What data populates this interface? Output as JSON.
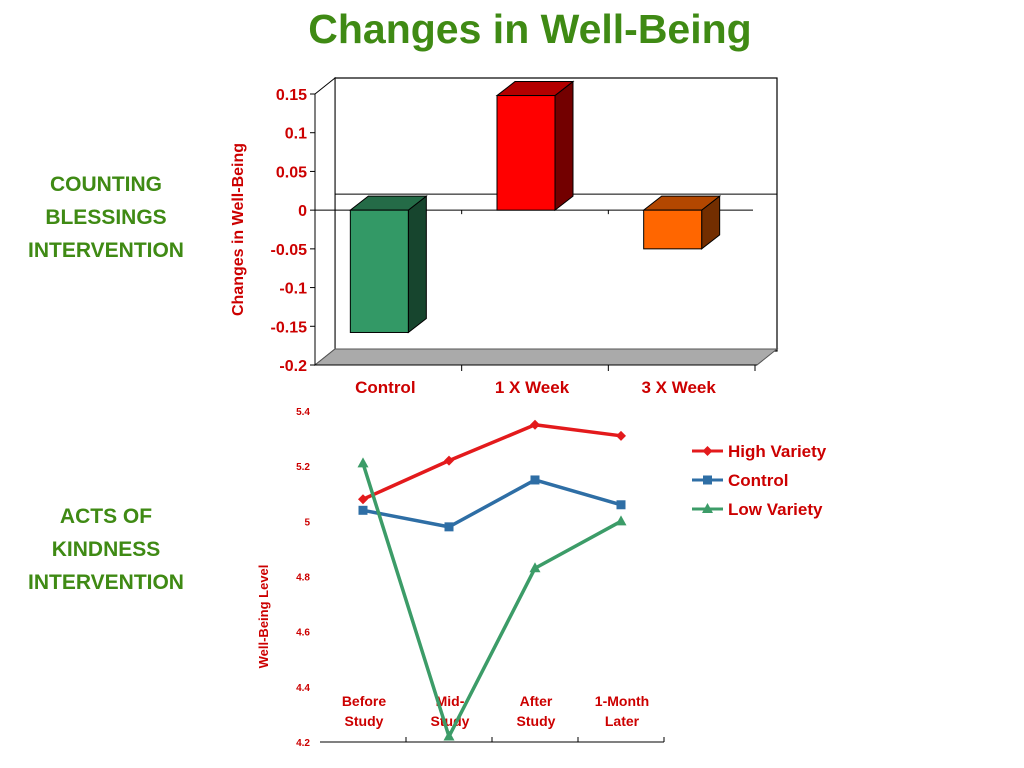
{
  "page": {
    "title": "Changes in Well-Being",
    "section_labels": [
      [
        "COUNTING",
        "BLESSINGS",
        "INTERVENTION"
      ],
      [
        "ACTS OF",
        "KINDNESS",
        "INTERVENTION"
      ]
    ]
  },
  "colors": {
    "title": "#3f8a14",
    "axis_text": "#cc0000",
    "control_bar": "#339966",
    "one_week_bar": "#ff0000",
    "three_week_bar": "#ff6600",
    "high_variety": "#e31a1c",
    "control_line": "#2e6ea5",
    "low_variety": "#3c9c68"
  },
  "chart_data": [
    {
      "type": "bar",
      "style": "3d",
      "title": "",
      "xlabel": "",
      "ylabel": "Changes in Well-Being",
      "categories": [
        "Control",
        "1 X Week",
        "3 X Week"
      ],
      "values": [
        -0.158,
        0.148,
        -0.05
      ],
      "bar_colors": [
        "#339966",
        "#ff0000",
        "#ff6600"
      ],
      "ylim": [
        -0.2,
        0.15
      ],
      "yticks": [
        "0.15",
        "0.1",
        "0.05",
        "0",
        "-0.05",
        "-0.1",
        "-0.15",
        "-0.2"
      ],
      "grid": false
    },
    {
      "type": "line",
      "title": "",
      "xlabel": "",
      "ylabel": "Well-Being Level",
      "categories": [
        "Before Study",
        "Mid-Study",
        "After Study",
        "1-Month Later"
      ],
      "category_lines": [
        [
          "Before",
          "Study"
        ],
        [
          "Mid-",
          "Study"
        ],
        [
          "After",
          "Study"
        ],
        [
          "1-Month",
          "Later"
        ]
      ],
      "ylim": [
        4.2,
        5.4
      ],
      "yticks": [
        "5.4",
        "5.2",
        "5",
        "4.8",
        "4.6",
        "4.4",
        "4.2"
      ],
      "legend_position": "right",
      "grid": false,
      "series": [
        {
          "name": "High Variety",
          "values": [
            5.08,
            5.22,
            5.35,
            5.31
          ],
          "color": "#e31a1c",
          "marker": "diamond"
        },
        {
          "name": "Control",
          "values": [
            5.04,
            4.98,
            5.15,
            5.06
          ],
          "color": "#2e6ea5",
          "marker": "square"
        },
        {
          "name": "Low Variety",
          "values": [
            5.21,
            4.22,
            4.83,
            5.0
          ],
          "color": "#3c9c68",
          "marker": "triangle"
        }
      ]
    }
  ]
}
